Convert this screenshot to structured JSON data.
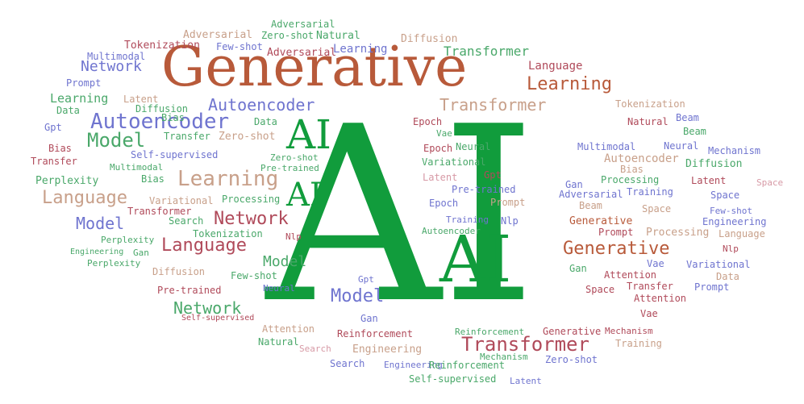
{
  "colors": {
    "green": "#119c3c",
    "brown": "#b85a3a",
    "blue": "#6f74cf",
    "tan": "#c8a08a",
    "red": "#b04a5a",
    "seagreen": "#4aa86a",
    "pink": "#d79aa6"
  },
  "words": [
    {
      "text": "AI",
      "color": "#119c3c"
    },
    {
      "text": "Generative",
      "color": "#b85a3a"
    },
    {
      "text": "AI",
      "color": "#119c3c"
    },
    {
      "text": "AI",
      "color": "#119c3c"
    },
    {
      "text": "AI",
      "color": "#119c3c"
    },
    {
      "text": "Transformer",
      "color": "#c8a08a"
    },
    {
      "text": "Transformer",
      "color": "#b04a5a"
    },
    {
      "text": "Transformer",
      "color": "#4aa86a"
    },
    {
      "text": "Autoencoder",
      "color": "#6f74cf"
    },
    {
      "text": "Autoencoder",
      "color": "#6f74cf"
    },
    {
      "text": "Learning",
      "color": "#b85a3a"
    },
    {
      "text": "Learning",
      "color": "#c8a08a"
    },
    {
      "text": "Language",
      "color": "#c8a08a"
    },
    {
      "text": "Language",
      "color": "#b04a5a"
    },
    {
      "text": "Network",
      "color": "#b04a5a"
    },
    {
      "text": "Network",
      "color": "#4aa86a"
    },
    {
      "text": "Network",
      "color": "#6f74cf"
    },
    {
      "text": "Model",
      "color": "#4aa86a"
    },
    {
      "text": "Model",
      "color": "#6f74cf"
    },
    {
      "text": "Model",
      "color": "#6f74cf"
    },
    {
      "text": "Model",
      "color": "#4aa86a"
    },
    {
      "text": "Generative",
      "color": "#b85a3a"
    },
    {
      "text": "Adversarial",
      "color": "#c8a08a"
    },
    {
      "text": "Adversarial",
      "color": "#4aa86a"
    },
    {
      "text": "Zero-shot",
      "color": "#4aa86a"
    },
    {
      "text": "Natural",
      "color": "#4aa86a"
    },
    {
      "text": "Diffusion",
      "color": "#c8a08a"
    },
    {
      "text": "Tokenization",
      "color": "#b04a5a"
    },
    {
      "text": "Few-shot",
      "color": "#6f74cf"
    },
    {
      "text": "Adversarial",
      "color": "#b04a5a"
    },
    {
      "text": "Learning",
      "color": "#6f74cf"
    },
    {
      "text": "Multimodal",
      "color": "#6f74cf"
    },
    {
      "text": "Prompt",
      "color": "#6f74cf"
    },
    {
      "text": "Learning",
      "color": "#4aa86a"
    },
    {
      "text": "Latent",
      "color": "#c8a08a"
    },
    {
      "text": "Data",
      "color": "#4aa86a"
    },
    {
      "text": "Diffusion",
      "color": "#4aa86a"
    },
    {
      "text": "Bias",
      "color": "#4aa86a"
    },
    {
      "text": "Gpt",
      "color": "#6f74cf"
    },
    {
      "text": "Bias",
      "color": "#b04a5a"
    },
    {
      "text": "Transfer",
      "color": "#b04a5a"
    },
    {
      "text": "Transfer",
      "color": "#4aa86a"
    },
    {
      "text": "Zero-shot",
      "color": "#c8a08a"
    },
    {
      "text": "Self-supervised",
      "color": "#6f74cf"
    },
    {
      "text": "Multimodal",
      "color": "#4aa86a"
    },
    {
      "text": "Bias",
      "color": "#4aa86a"
    },
    {
      "text": "Perplexity",
      "color": "#4aa86a"
    },
    {
      "text": "Data",
      "color": "#4aa86a"
    },
    {
      "text": "Zero-shot",
      "color": "#4aa86a"
    },
    {
      "text": "Pre-trained",
      "color": "#4aa86a"
    },
    {
      "text": "Variational",
      "color": "#c8a08a"
    },
    {
      "text": "Processing",
      "color": "#4aa86a"
    },
    {
      "text": "Transformer",
      "color": "#b04a5a"
    },
    {
      "text": "Search",
      "color": "#4aa86a"
    },
    {
      "text": "Tokenization",
      "color": "#4aa86a"
    },
    {
      "text": "Nlp",
      "color": "#b04a5a"
    },
    {
      "text": "Perplexity",
      "color": "#4aa86a"
    },
    {
      "text": "Engineering",
      "color": "#4aa86a"
    },
    {
      "text": "Gan",
      "color": "#4aa86a"
    },
    {
      "text": "Perplexity",
      "color": "#4aa86a"
    },
    {
      "text": "Diffusion",
      "color": "#c8a08a"
    },
    {
      "text": "Few-shot",
      "color": "#4aa86a"
    },
    {
      "text": "Pre-trained",
      "color": "#b04a5a"
    },
    {
      "text": "Neural",
      "color": "#6f74cf"
    },
    {
      "text": "Self-supervised",
      "color": "#b04a5a"
    },
    {
      "text": "Attention",
      "color": "#c8a08a"
    },
    {
      "text": "Natural",
      "color": "#4aa86a"
    },
    {
      "text": "Search",
      "color": "#d79aa6"
    },
    {
      "text": "Reinforcement",
      "color": "#b04a5a"
    },
    {
      "text": "Engineering",
      "color": "#c8a08a"
    },
    {
      "text": "Search",
      "color": "#6f74cf"
    },
    {
      "text": "Engineering",
      "color": "#6f74cf"
    },
    {
      "text": "Reinforcement",
      "color": "#4aa86a"
    },
    {
      "text": "Self-supervised",
      "color": "#4aa86a"
    },
    {
      "text": "Gpt",
      "color": "#6f74cf"
    },
    {
      "text": "Gan",
      "color": "#6f74cf"
    },
    {
      "text": "Reinforcement",
      "color": "#4aa86a"
    },
    {
      "text": "Mechanism",
      "color": "#4aa86a"
    },
    {
      "text": "Zero-shot",
      "color": "#6f74cf"
    },
    {
      "text": "Latent",
      "color": "#6f74cf"
    },
    {
      "text": "Generative",
      "color": "#b04a5a"
    },
    {
      "text": "Mechanism",
      "color": "#b04a5a"
    },
    {
      "text": "Training",
      "color": "#c8a08a"
    },
    {
      "text": "Epoch",
      "color": "#b04a5a"
    },
    {
      "text": "Vae",
      "color": "#4aa86a"
    },
    {
      "text": "Epoch",
      "color": "#b04a5a"
    },
    {
      "text": "Neural",
      "color": "#4aa86a"
    },
    {
      "text": "Variational",
      "color": "#4aa86a"
    },
    {
      "text": "Latent",
      "color": "#d79aa6"
    },
    {
      "text": "Gpt",
      "color": "#b04a5a"
    },
    {
      "text": "Pre-trained",
      "color": "#6f74cf"
    },
    {
      "text": "Epoch",
      "color": "#6f74cf"
    },
    {
      "text": "Prompt",
      "color": "#c8a08a"
    },
    {
      "text": "Training",
      "color": "#6f74cf"
    },
    {
      "text": "Nlp",
      "color": "#6f74cf"
    },
    {
      "text": "Autoencoder",
      "color": "#4aa86a"
    },
    {
      "text": "Language",
      "color": "#b04a5a"
    },
    {
      "text": "Tokenization",
      "color": "#c8a08a"
    },
    {
      "text": "Beam",
      "color": "#6f74cf"
    },
    {
      "text": "Natural",
      "color": "#b04a5a"
    },
    {
      "text": "Beam",
      "color": "#4aa86a"
    },
    {
      "text": "Multimodal",
      "color": "#6f74cf"
    },
    {
      "text": "Neural",
      "color": "#6f74cf"
    },
    {
      "text": "Mechanism",
      "color": "#6f74cf"
    },
    {
      "text": "Autoencoder",
      "color": "#c8a08a"
    },
    {
      "text": "Diffusion",
      "color": "#4aa86a"
    },
    {
      "text": "Bias",
      "color": "#c8a08a"
    },
    {
      "text": "Processing",
      "color": "#4aa86a"
    },
    {
      "text": "Latent",
      "color": "#b04a5a"
    },
    {
      "text": "Space",
      "color": "#d79aa6"
    },
    {
      "text": "Gan",
      "color": "#6f74cf"
    },
    {
      "text": "Adversarial",
      "color": "#6f74cf"
    },
    {
      "text": "Training",
      "color": "#6f74cf"
    },
    {
      "text": "Space",
      "color": "#6f74cf"
    },
    {
      "text": "Beam",
      "color": "#c8a08a"
    },
    {
      "text": "Space",
      "color": "#c8a08a"
    },
    {
      "text": "Few-shot",
      "color": "#6f74cf"
    },
    {
      "text": "Generative",
      "color": "#b85a3a"
    },
    {
      "text": "Prompt",
      "color": "#b04a5a"
    },
    {
      "text": "Processing",
      "color": "#c8a08a"
    },
    {
      "text": "Engineering",
      "color": "#6f74cf"
    },
    {
      "text": "Language",
      "color": "#c8a08a"
    },
    {
      "text": "Nlp",
      "color": "#b04a5a"
    },
    {
      "text": "Gan",
      "color": "#4aa86a"
    },
    {
      "text": "Vae",
      "color": "#6f74cf"
    },
    {
      "text": "Variational",
      "color": "#6f74cf"
    },
    {
      "text": "Attention",
      "color": "#b04a5a"
    },
    {
      "text": "Data",
      "color": "#c8a08a"
    },
    {
      "text": "Space",
      "color": "#b04a5a"
    },
    {
      "text": "Transfer",
      "color": "#b04a5a"
    },
    {
      "text": "Prompt",
      "color": "#6f74cf"
    },
    {
      "text": "Attention",
      "color": "#b04a5a"
    },
    {
      "text": "Vae",
      "color": "#b04a5a"
    }
  ]
}
